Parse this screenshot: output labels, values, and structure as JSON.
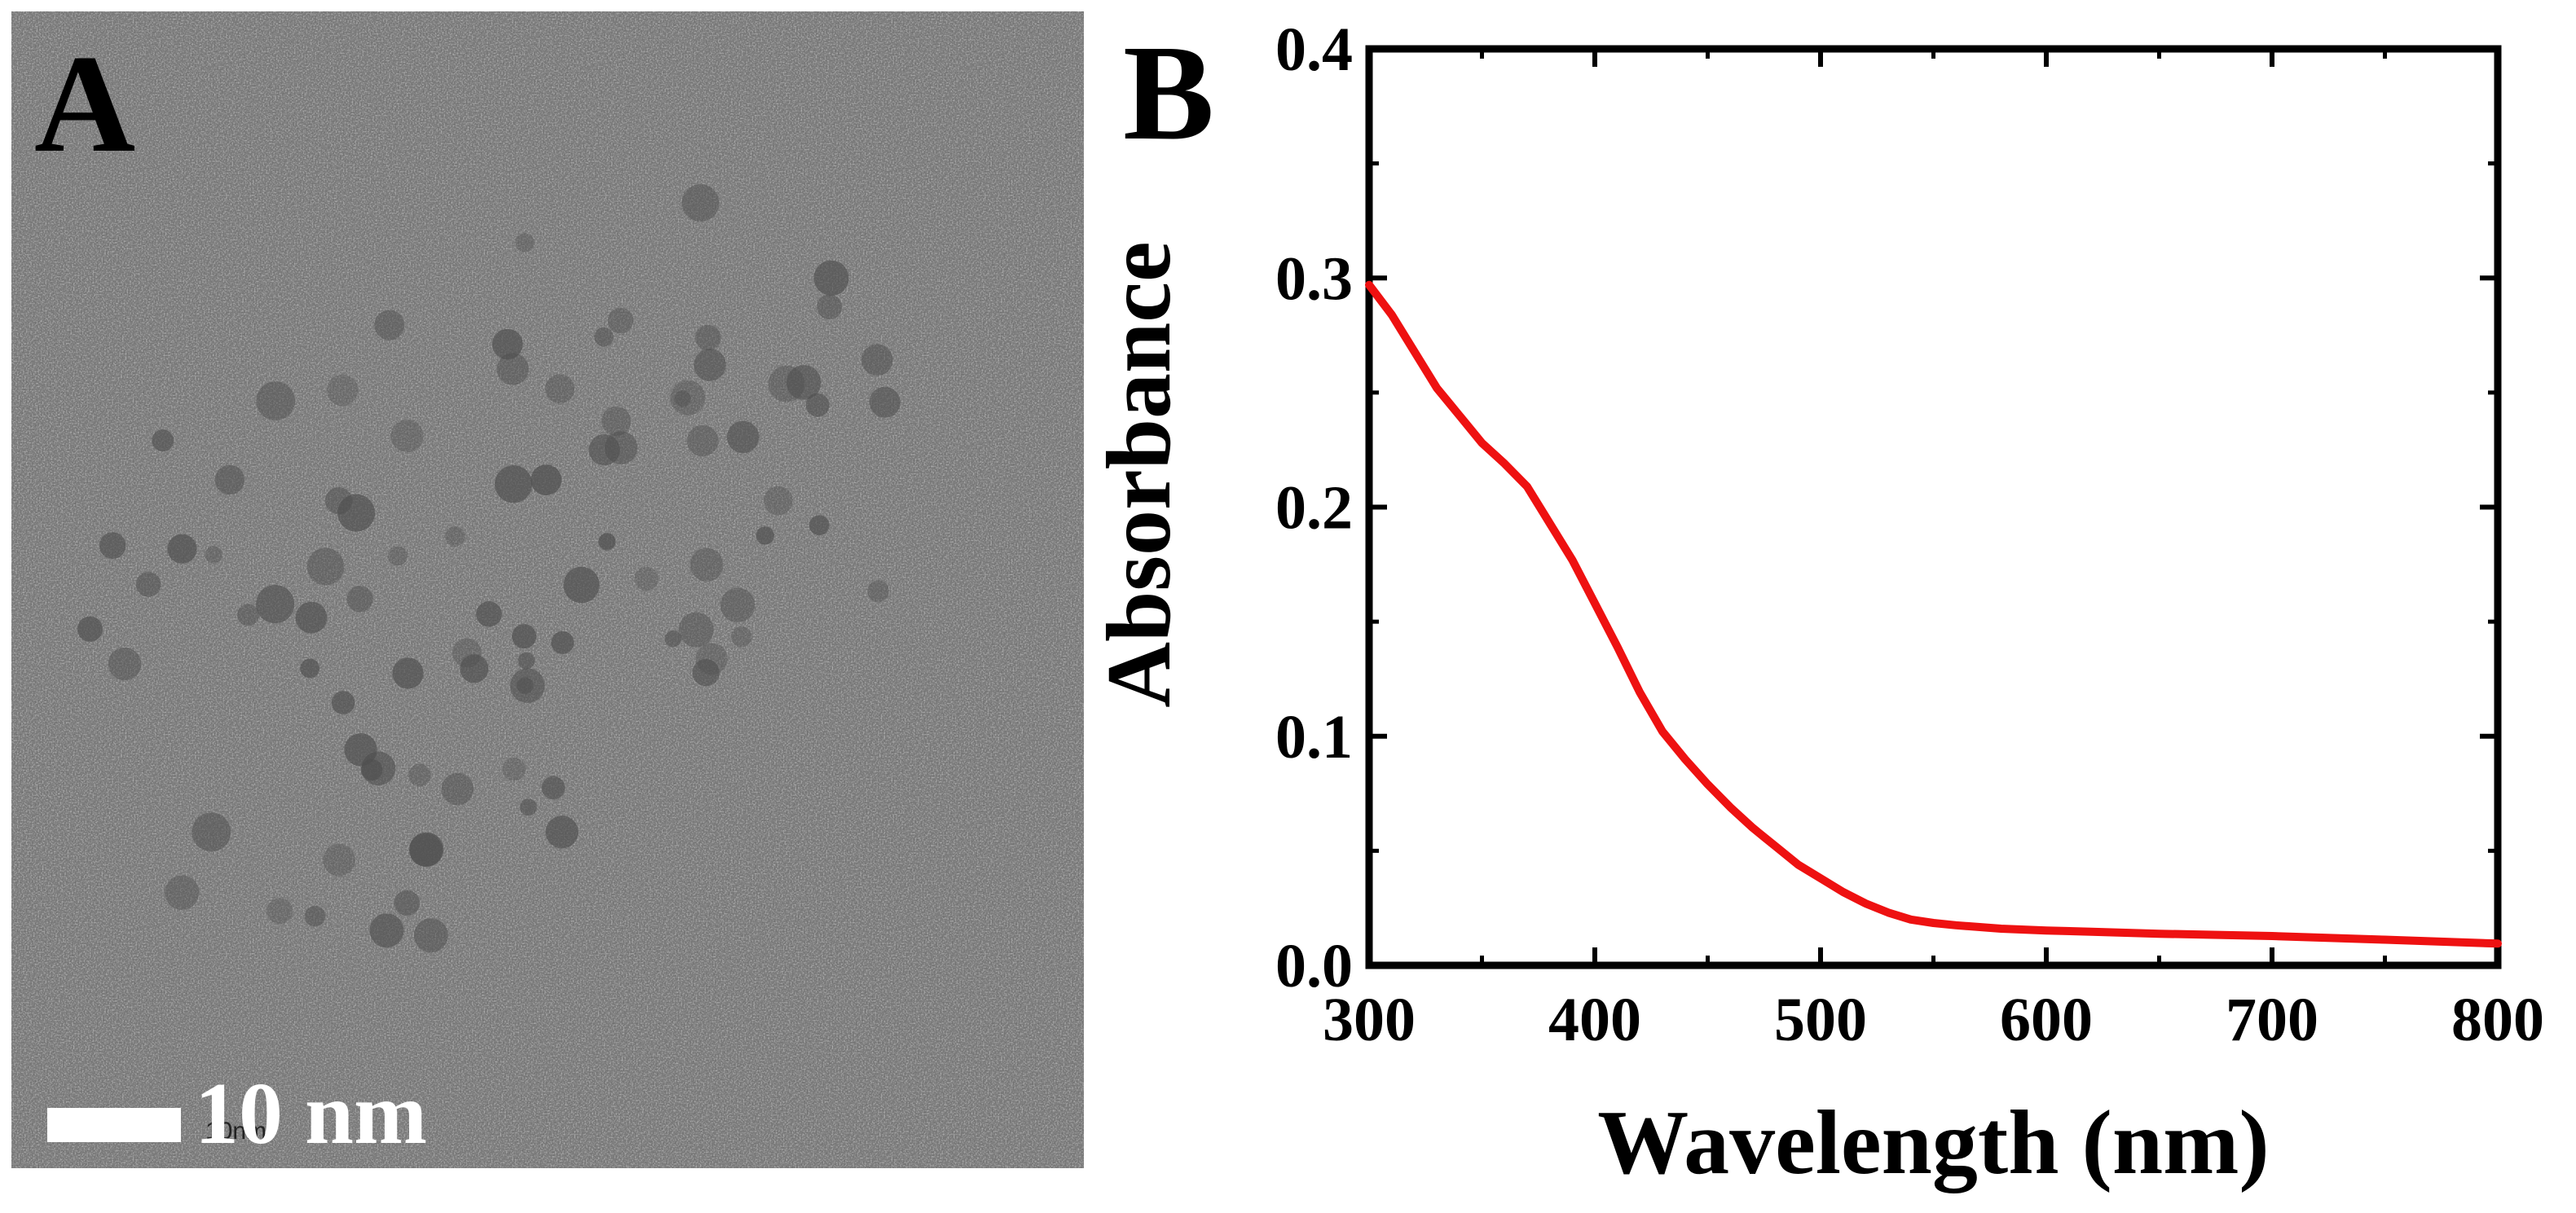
{
  "panel_a": {
    "letter": "A",
    "scale_label": "10 nm",
    "scale_small_text": "10nm",
    "description_colors": {
      "background": "#7f7f7f",
      "particles": "#4f4f4f"
    }
  },
  "panel_b": {
    "letter": "B"
  },
  "chart_data": {
    "type": "line",
    "title": "",
    "xlabel": "Wavelength (nm)",
    "ylabel": "Absorbance",
    "xlim": [
      300,
      800
    ],
    "ylim": [
      0.0,
      0.4
    ],
    "xticks": [
      300,
      400,
      500,
      600,
      700,
      800
    ],
    "xtick_labels": [
      "300",
      "400",
      "500",
      "600",
      "700",
      "800"
    ],
    "yticks": [
      0.0,
      0.1,
      0.2,
      0.3,
      0.4
    ],
    "ytick_labels": [
      "0.0",
      "0.1",
      "0.2",
      "0.3",
      "0.4"
    ],
    "grid": false,
    "series": [
      {
        "name": "Absorbance",
        "color": "#ee1111",
        "x": [
          300,
          310,
          320,
          330,
          340,
          350,
          360,
          370,
          380,
          390,
          400,
          410,
          420,
          430,
          440,
          450,
          460,
          470,
          480,
          490,
          500,
          510,
          520,
          530,
          540,
          550,
          560,
          580,
          600,
          620,
          650,
          700,
          750,
          800
        ],
        "y": [
          0.297,
          0.284,
          0.268,
          0.252,
          0.24,
          0.228,
          0.219,
          0.209,
          0.193,
          0.177,
          0.158,
          0.139,
          0.119,
          0.102,
          0.09,
          0.079,
          0.069,
          0.06,
          0.052,
          0.044,
          0.038,
          0.032,
          0.027,
          0.023,
          0.02,
          0.0185,
          0.0175,
          0.016,
          0.0152,
          0.0147,
          0.0138,
          0.0128,
          0.0112,
          0.0095
        ]
      }
    ]
  }
}
